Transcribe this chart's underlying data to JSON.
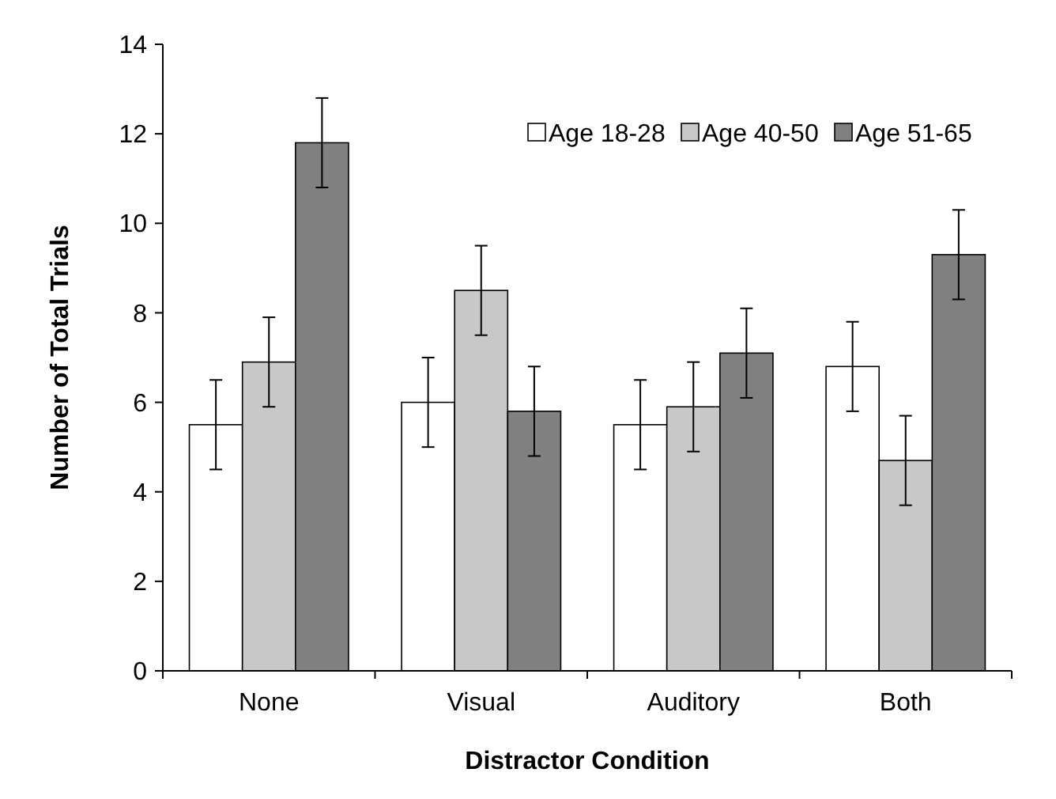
{
  "chart_data": {
    "type": "bar",
    "xlabel": "Distractor Condition",
    "ylabel": "Number of Total Trials",
    "categories": [
      "None",
      "Visual",
      "Auditory",
      "Both"
    ],
    "ylim": [
      0,
      14
    ],
    "yticks": [
      0,
      2,
      4,
      6,
      8,
      10,
      12,
      14
    ],
    "grid": false,
    "legend": "top right",
    "series": [
      {
        "name": "Age 18-28",
        "color": "#ffffff",
        "values": [
          5.5,
          6.0,
          5.5,
          6.8
        ],
        "errors": [
          1,
          1,
          1,
          1
        ]
      },
      {
        "name": "Age 40-50",
        "color": "#c8c8c8",
        "values": [
          6.9,
          8.5,
          5.9,
          4.7
        ],
        "errors": [
          1,
          1,
          1,
          1
        ]
      },
      {
        "name": "Age 51-65",
        "color": "#808080",
        "values": [
          11.8,
          5.8,
          7.1,
          9.3
        ],
        "errors": [
          1,
          1,
          1,
          1
        ]
      }
    ]
  }
}
